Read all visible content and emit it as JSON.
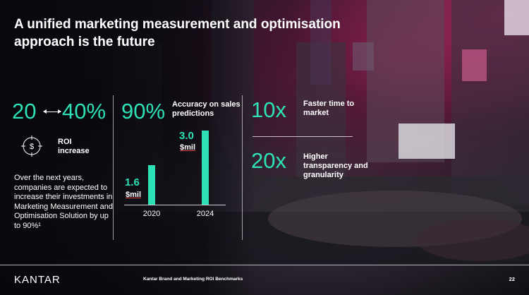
{
  "title": "A unified marketing measurement and optimisation approach is the future",
  "roi": {
    "range_low": "20",
    "range_high": "40%",
    "label": "ROI increase",
    "description": "Over the next years, companies are expected to increase their investments in Marketing Measurement and Optimisation Solution by up to 90%¹"
  },
  "accuracy": {
    "value": "90%",
    "label": "Accuracy on sales predictions"
  },
  "chart_data": {
    "type": "bar",
    "categories": [
      "2020",
      "2024"
    ],
    "values": [
      1.6,
      3.0
    ],
    "value_labels": [
      "1.6",
      "3.0"
    ],
    "unit": "$mil",
    "ylim": [
      0,
      3.0
    ]
  },
  "stats": [
    {
      "value": "10x",
      "label": "Faster time to market"
    },
    {
      "value": "20x",
      "label": "Higher transparency and granularity"
    }
  ],
  "footer": {
    "logo": "KANTAR",
    "source": "Kantar Brand and Marketing ROI Benchmarks",
    "page": "22"
  },
  "colors": {
    "accent": "#2de0b6",
    "background": "#0b0d14",
    "text": "#ffffff"
  },
  "icons": [
    "arrow-both-icon",
    "dollar-target-icon"
  ]
}
